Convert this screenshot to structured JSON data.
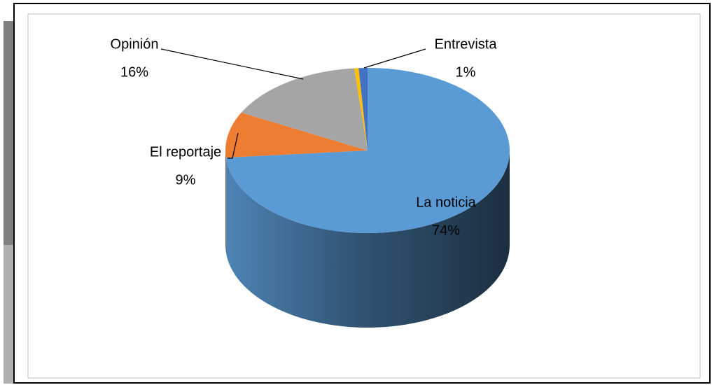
{
  "chart_data": {
    "type": "pie3d",
    "categories": [
      "La noticia",
      "El reportaje",
      "Opinión",
      null,
      "Entrevista"
    ],
    "values": [
      74,
      9,
      16,
      0.5,
      1
    ],
    "value_labels": [
      "74%",
      "9%",
      "16%",
      null,
      "1%"
    ],
    "colors": [
      "#5b9bd5",
      "#ed7d31",
      "#a5a5a5",
      "#ffc000",
      "#4472c4"
    ]
  }
}
